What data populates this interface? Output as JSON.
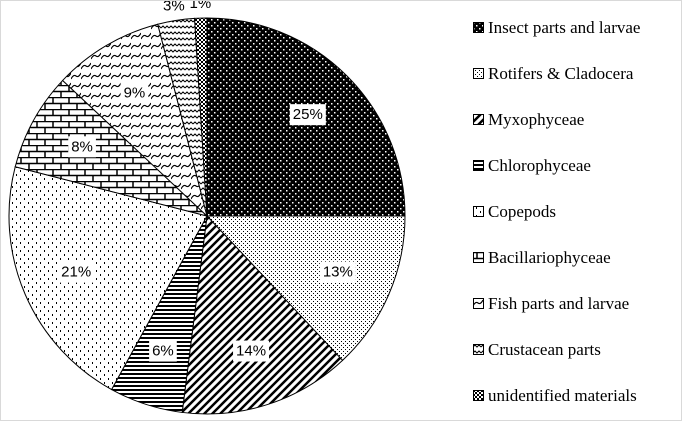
{
  "chart_data": {
    "type": "pie",
    "categories": [
      "Insect parts and larvae",
      "Rotifers  & Cladocera",
      "Myxophyceae",
      "Chlorophyceae",
      "Copepods",
      "Bacillariophyceae",
      "Fish parts and larvae",
      "Crustacean parts",
      "unidentified materials"
    ],
    "values": [
      25,
      13,
      14,
      6,
      21,
      8,
      9,
      3,
      1
    ],
    "value_labels": [
      "25%",
      "13%",
      "14%",
      "6%",
      "21%",
      "8%",
      "9%",
      "3%",
      "1%"
    ],
    "legend": "right"
  }
}
